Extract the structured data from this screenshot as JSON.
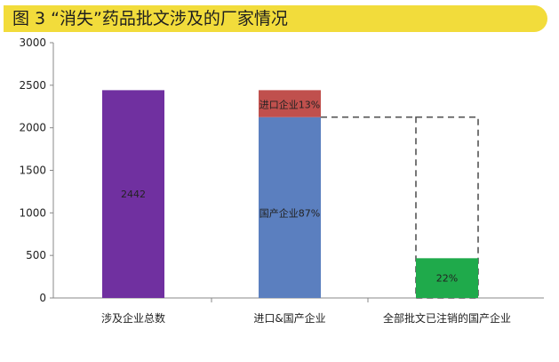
{
  "title": "图 3 “消失”药品批文涉及的厂家情况",
  "colors": {
    "banner": "#f2dc3b",
    "total": "#7030a0",
    "domestic": "#5b7fbf",
    "import": "#c0504d",
    "cancelled": "#1faa4b",
    "dashed": "#555555"
  },
  "chart_data": {
    "type": "bar",
    "stacked": true,
    "title": "图 3 “消失”药品批文涉及的厂家情况",
    "xlabel": "",
    "ylabel": "",
    "ylim": [
      0,
      3000
    ],
    "yticks": [
      0,
      500,
      1000,
      1500,
      2000,
      2500,
      3000
    ],
    "grid": false,
    "legend": "none",
    "categories": [
      "涉及企业总数",
      "进口&国产企业",
      "全部批文已注销的国产企业"
    ],
    "bars": [
      {
        "category": "涉及企业总数",
        "segments": [
          {
            "value": 2442,
            "color": "#7030a0",
            "label": "2442"
          }
        ]
      },
      {
        "category": "进口&国产企业",
        "segments": [
          {
            "value": 2125,
            "color": "#5b7fbf",
            "label": "国产企业87%"
          },
          {
            "value": 317,
            "color": "#c0504d",
            "label": "进口企业13%"
          }
        ]
      },
      {
        "category": "全部批文已注销的国产企业",
        "segments": [
          {
            "value": 467,
            "color": "#1faa4b",
            "label": "22%"
          }
        ],
        "dashed_outline_to": 2125
      }
    ]
  }
}
